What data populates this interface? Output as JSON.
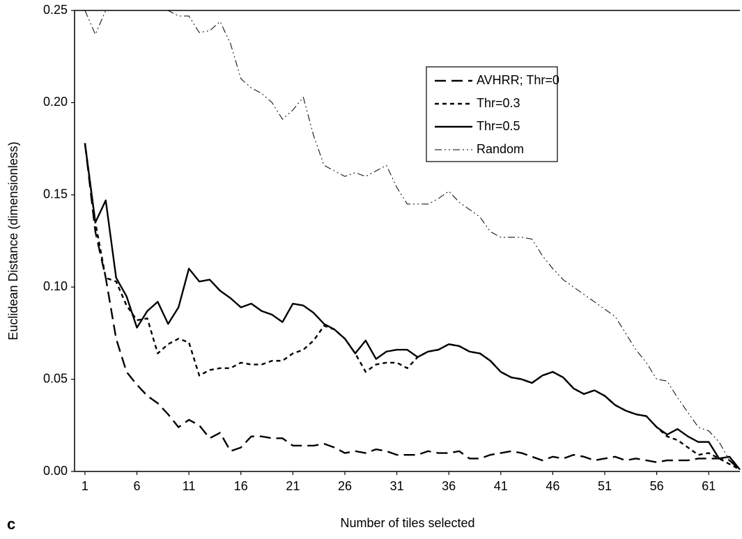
{
  "chart_data": {
    "type": "line",
    "x_label": "Number of tiles selected",
    "y_label": "Euclidean Distance (dimensionless)",
    "panel_label": "c",
    "x": [
      1,
      2,
      3,
      4,
      5,
      6,
      7,
      8,
      9,
      10,
      11,
      12,
      13,
      14,
      15,
      16,
      17,
      18,
      19,
      20,
      21,
      22,
      23,
      24,
      25,
      26,
      27,
      28,
      29,
      30,
      31,
      32,
      33,
      34,
      35,
      36,
      37,
      38,
      39,
      40,
      41,
      42,
      43,
      44,
      45,
      46,
      47,
      48,
      49,
      50,
      51,
      52,
      53,
      54,
      55,
      56,
      57,
      58,
      59,
      60,
      61,
      62,
      63,
      64
    ],
    "xlim": [
      0,
      64
    ],
    "xticks": [
      1,
      6,
      11,
      16,
      21,
      26,
      31,
      36,
      41,
      46,
      51,
      56,
      61
    ],
    "ylim": [
      0,
      0.25
    ],
    "yticks": [
      {
        "value": 0,
        "label": "0.00"
      },
      {
        "value": 0.05,
        "label": "0.05"
      },
      {
        "value": 0.1,
        "label": "0.10"
      },
      {
        "value": 0.15,
        "label": "0.15"
      },
      {
        "value": 0.2,
        "label": "0.20"
      },
      {
        "value": 0.25,
        "label": "0.25"
      }
    ],
    "legend": "upper-right",
    "series": [
      {
        "name": "AVHRR; Thr=0",
        "color": "#000000",
        "dash": "long-dash",
        "width": 2.4,
        "values": [
          0.178,
          0.13,
          0.105,
          0.072,
          0.054,
          0.047,
          0.041,
          0.037,
          0.031,
          0.024,
          0.028,
          0.025,
          0.018,
          0.021,
          0.011,
          0.013,
          0.019,
          0.019,
          0.018,
          0.018,
          0.014,
          0.014,
          0.014,
          0.015,
          0.013,
          0.01,
          0.011,
          0.01,
          0.012,
          0.011,
          0.009,
          0.009,
          0.009,
          0.011,
          0.01,
          0.01,
          0.011,
          0.007,
          0.007,
          0.009,
          0.01,
          0.011,
          0.01,
          0.008,
          0.006,
          0.008,
          0.007,
          0.009,
          0.008,
          0.006,
          0.007,
          0.008,
          0.006,
          0.007,
          0.006,
          0.005,
          0.006,
          0.006,
          0.006,
          0.007,
          0.007,
          0.007,
          0.006,
          0.001
        ]
      },
      {
        "name": "Thr=0.3",
        "color": "#000000",
        "dash": "short-dash",
        "width": 2.4,
        "values": [
          0.178,
          0.135,
          0.105,
          0.103,
          0.09,
          0.082,
          0.083,
          0.064,
          0.069,
          0.072,
          0.07,
          0.052,
          0.055,
          0.056,
          0.056,
          0.059,
          0.058,
          0.058,
          0.06,
          0.06,
          0.064,
          0.066,
          0.071,
          0.079,
          0.077,
          0.072,
          0.064,
          0.054,
          0.058,
          0.059,
          0.059,
          0.056,
          0.062,
          0.065,
          0.066,
          0.069,
          0.068,
          0.065,
          0.064,
          0.06,
          0.054,
          0.051,
          0.05,
          0.048,
          0.052,
          0.054,
          0.051,
          0.045,
          0.042,
          0.044,
          0.041,
          0.036,
          0.033,
          0.031,
          0.03,
          0.024,
          0.019,
          0.017,
          0.013,
          0.009,
          0.01,
          0.007,
          0.004,
          0.001
        ]
      },
      {
        "name": "Thr=0.5",
        "color": "#000000",
        "dash": "solid",
        "width": 2.4,
        "values": [
          0.178,
          0.135,
          0.147,
          0.105,
          0.095,
          0.078,
          0.087,
          0.092,
          0.08,
          0.089,
          0.11,
          0.103,
          0.104,
          0.098,
          0.094,
          0.089,
          0.091,
          0.087,
          0.085,
          0.081,
          0.091,
          0.09,
          0.086,
          0.08,
          0.077,
          0.072,
          0.064,
          0.071,
          0.061,
          0.065,
          0.066,
          0.066,
          0.062,
          0.065,
          0.066,
          0.069,
          0.068,
          0.065,
          0.064,
          0.06,
          0.054,
          0.051,
          0.05,
          0.048,
          0.052,
          0.054,
          0.051,
          0.045,
          0.042,
          0.044,
          0.041,
          0.036,
          0.033,
          0.031,
          0.03,
          0.024,
          0.02,
          0.023,
          0.019,
          0.016,
          0.016,
          0.007,
          0.008,
          0.001
        ]
      },
      {
        "name": "Random",
        "color": "#000000",
        "dash": "dash-dot-dot",
        "width": 1,
        "values": [
          0.25,
          0.237,
          0.25,
          0.27,
          0.28,
          0.27,
          0.26,
          0.255,
          0.25,
          0.247,
          0.247,
          0.238,
          0.239,
          0.244,
          0.232,
          0.213,
          0.208,
          0.205,
          0.2,
          0.191,
          0.196,
          0.203,
          0.182,
          0.166,
          0.163,
          0.16,
          0.162,
          0.16,
          0.163,
          0.166,
          0.154,
          0.145,
          0.145,
          0.145,
          0.148,
          0.152,
          0.146,
          0.142,
          0.138,
          0.13,
          0.127,
          0.127,
          0.127,
          0.126,
          0.117,
          0.11,
          0.104,
          0.1,
          0.096,
          0.092,
          0.088,
          0.084,
          0.075,
          0.066,
          0.059,
          0.05,
          0.049,
          0.04,
          0.032,
          0.024,
          0.022,
          0.016,
          0.006,
          0.001
        ]
      }
    ]
  }
}
